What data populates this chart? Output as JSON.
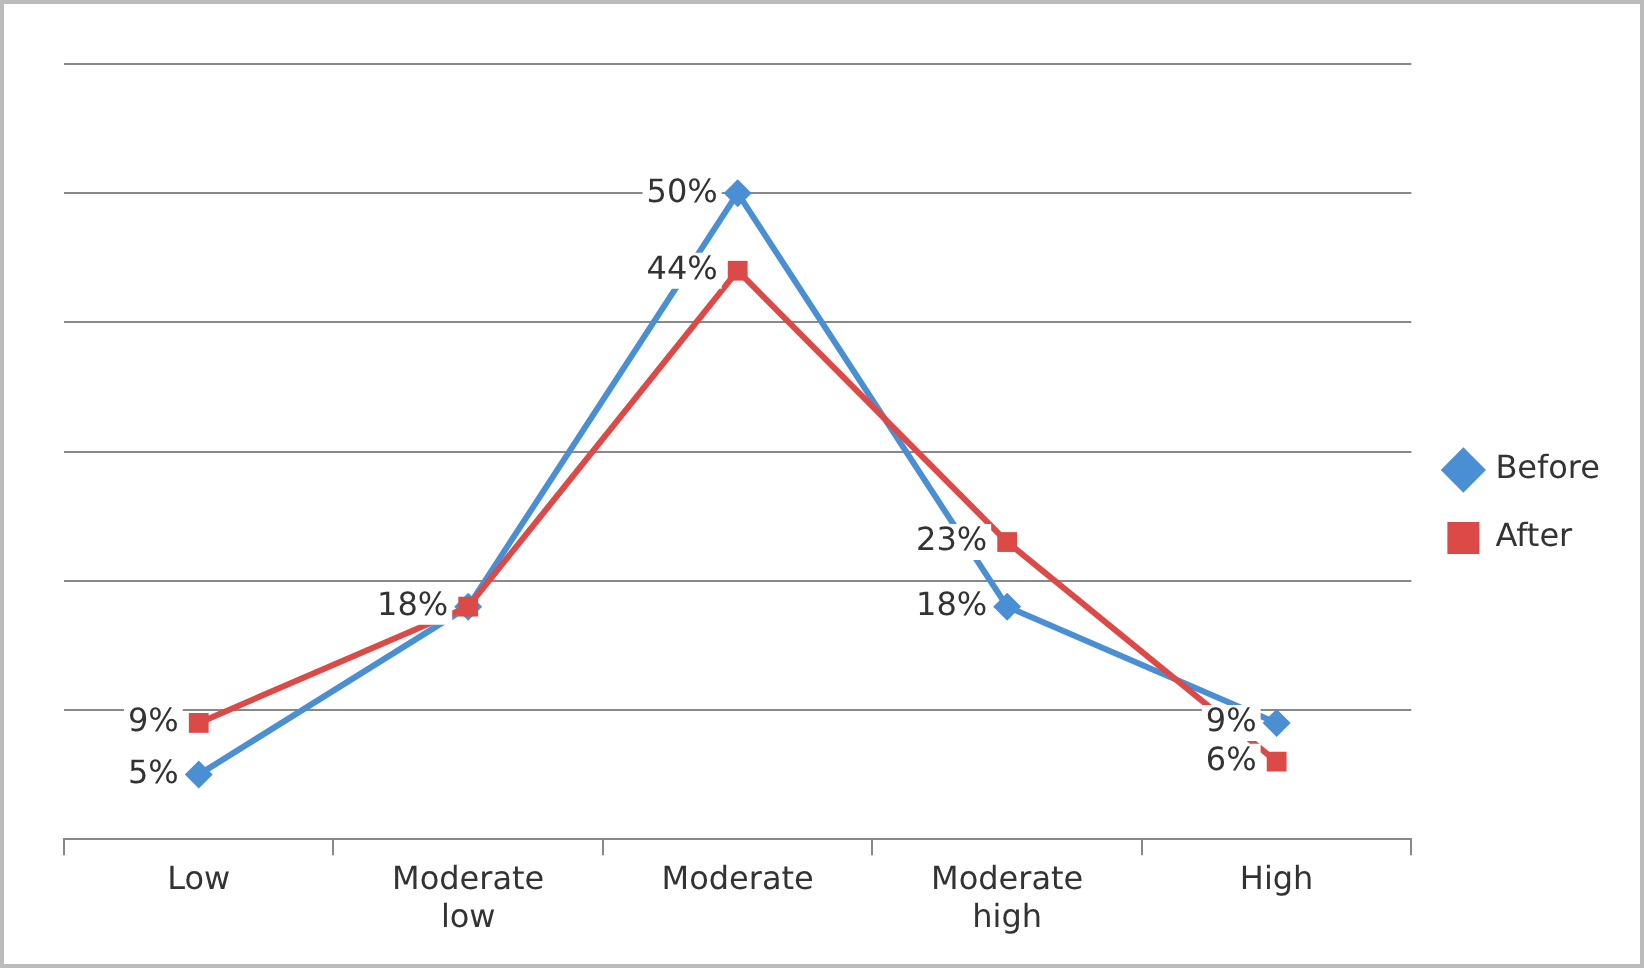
{
  "chart_data": {
    "type": "line",
    "categories": [
      "Low",
      "Moderate low",
      "Moderate",
      "Moderate high",
      "High"
    ],
    "series": [
      {
        "name": "Before",
        "color": "#4a8fd4",
        "values": [
          5,
          18,
          50,
          18,
          9
        ],
        "value_labels": [
          "5%",
          "18%",
          "50%",
          "18%",
          "9%"
        ],
        "marker": "diamond"
      },
      {
        "name": "After",
        "color": "#dc4a48",
        "values": [
          9,
          18,
          44,
          23,
          6
        ],
        "value_labels": [
          "9%",
          null,
          "44%",
          "23%",
          "6%"
        ],
        "marker": "square"
      }
    ],
    "ylim": [
      0,
      60
    ],
    "yticks": [
      {
        "value": 0,
        "label": null
      },
      {
        "value": 10,
        "label": null
      },
      {
        "value": 20,
        "label": null
      },
      {
        "value": 30,
        "label": null
      },
      {
        "value": 40,
        "label": null
      },
      {
        "value": 50,
        "label": null
      },
      {
        "value": 60,
        "label": null
      }
    ],
    "tick_labels": "x",
    "grid": "y",
    "legend": "right",
    "line_style": "solid"
  }
}
